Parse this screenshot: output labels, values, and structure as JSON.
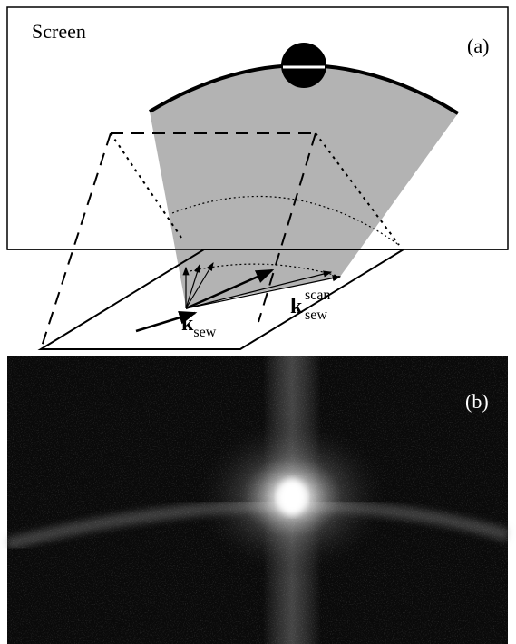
{
  "panel_a": {
    "label": "(a)",
    "screen_label": "Screen",
    "vectors": [
      {
        "base": "k",
        "sub": "sew"
      },
      {
        "base": "k",
        "sub": "sew",
        "sup": "scan"
      }
    ]
  },
  "panel_b": {
    "label": "(b)"
  }
}
